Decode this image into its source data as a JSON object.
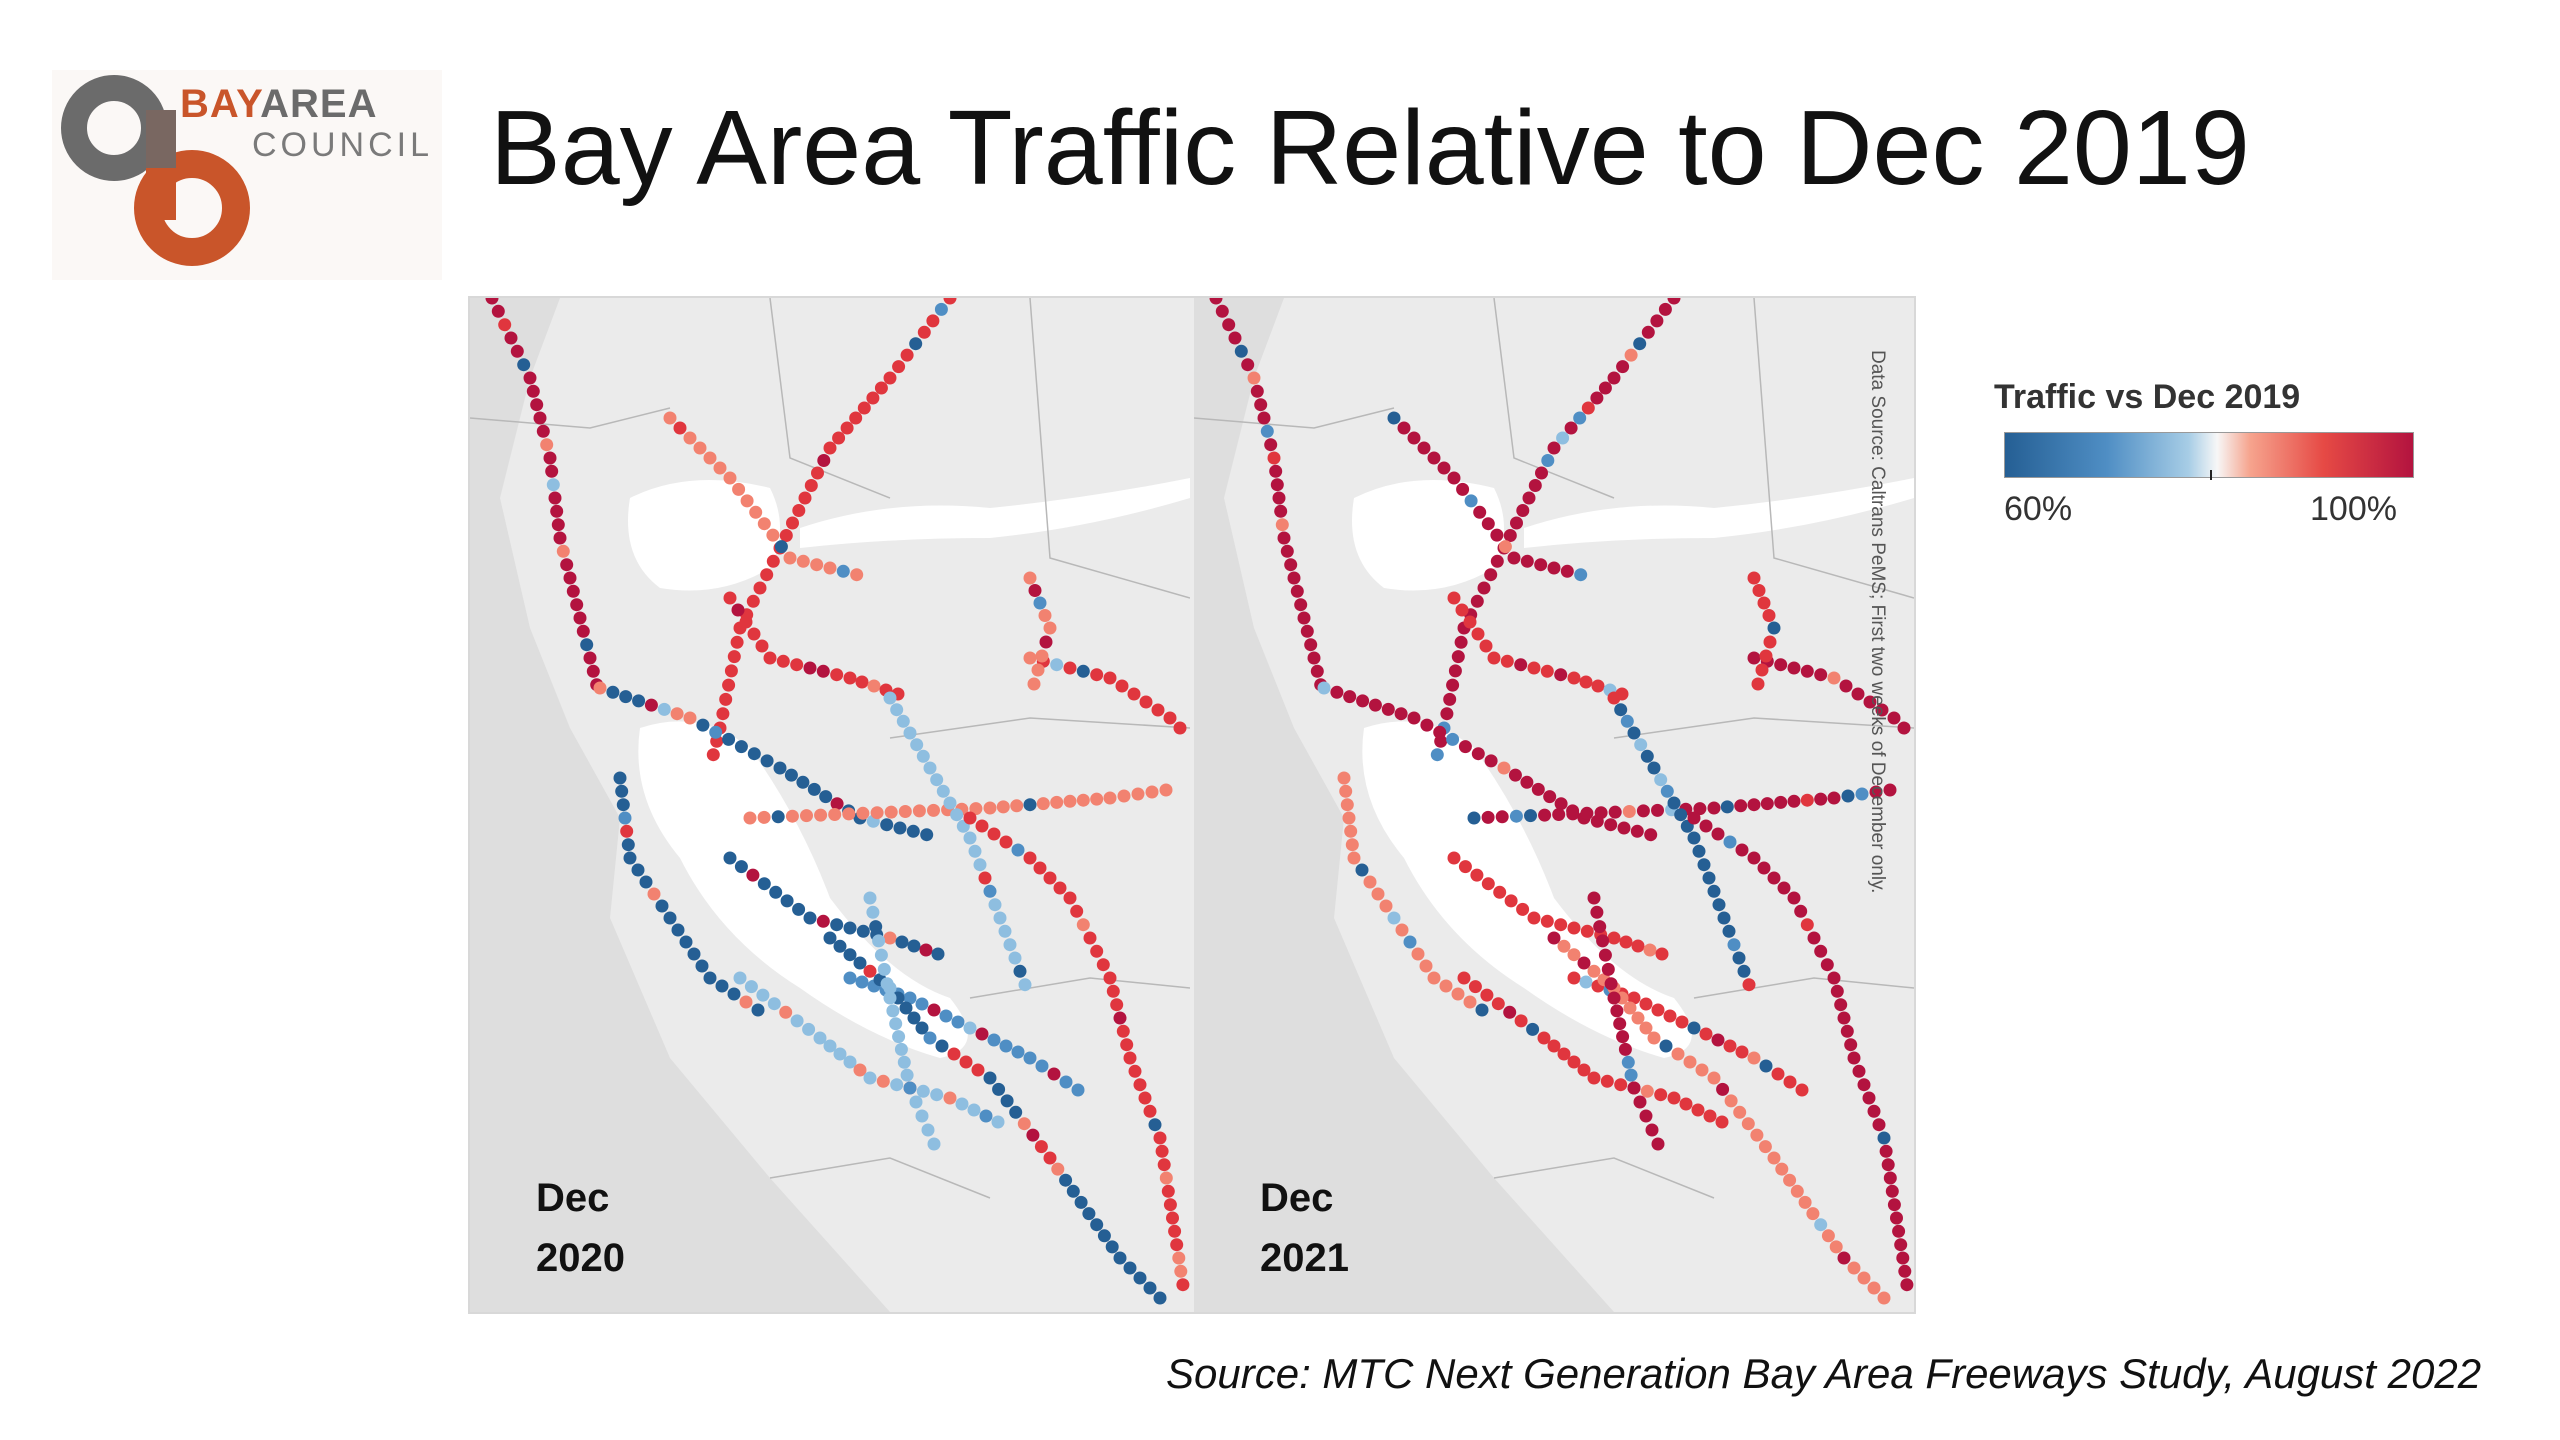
{
  "logo": {
    "word_bay": "BAY",
    "word_area": "AREA",
    "word_council": "COUNCIL"
  },
  "title": "Bay Area Traffic Relative to Dec 2019",
  "maps": {
    "left_label": "Dec\n2020",
    "right_label": "Dec\n2021",
    "data_source_note": "Data Source: Caltrans PeMS; First two weeks of December only."
  },
  "legend": {
    "title": "Traffic vs Dec 2019",
    "min_label": "60%",
    "max_label": "100%",
    "colors": {
      "low": "#255f94",
      "mid": "#f7f7f7",
      "high": "#b3133f"
    }
  },
  "source": "Source: MTC Next Generation Bay Area Freeways Study, August 2022",
  "colors": {
    "dark_red": "#b3133f",
    "red": "#e0363e",
    "salmon": "#f28270",
    "light_blue": "#8ebee0",
    "mid_blue": "#4f8ec4",
    "dark_blue": "#255f94",
    "brand_orange": "#c9552a",
    "brand_gray": "#6b6b6b"
  }
}
